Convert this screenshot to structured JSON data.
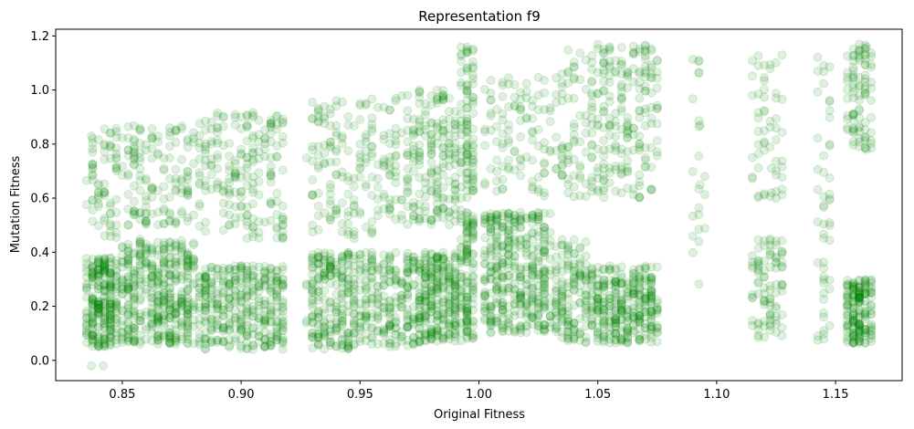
{
  "chart_data": {
    "type": "scatter",
    "title": "Representation f9",
    "xlabel": "Original Fitness",
    "ylabel": "Mutation Fitness",
    "xlim": [
      0.822,
      1.178
    ],
    "ylim": [
      -0.075,
      1.225
    ],
    "xticks": [
      0.85,
      0.9,
      0.95,
      1.0,
      1.05,
      1.1,
      1.15
    ],
    "xtick_labels": [
      "0.85",
      "0.90",
      "0.95",
      "1.00",
      "1.05",
      "1.10",
      "1.15"
    ],
    "yticks": [
      0.0,
      0.2,
      0.4,
      0.6,
      0.8,
      1.0,
      1.2
    ],
    "ytick_labels": [
      "0.0",
      "0.2",
      "0.4",
      "0.6",
      "0.8",
      "1.0",
      "1.2"
    ],
    "grid": false,
    "marker_color": "#008000",
    "marker_alpha": 0.12,
    "clusters": [
      {
        "x": [
          0.835,
          0.848
        ],
        "y": [
          0.05,
          0.38
        ],
        "n": 260
      },
      {
        "x": [
          0.835,
          0.848
        ],
        "y": [
          0.45,
          0.86
        ],
        "n": 70
      },
      {
        "x": [
          0.85,
          0.88
        ],
        "y": [
          0.06,
          0.45
        ],
        "n": 420
      },
      {
        "x": [
          0.85,
          0.88
        ],
        "y": [
          0.5,
          0.87
        ],
        "n": 140
      },
      {
        "x": [
          0.882,
          0.918
        ],
        "y": [
          0.04,
          0.35
        ],
        "n": 360
      },
      {
        "x": [
          0.882,
          0.918
        ],
        "y": [
          0.45,
          0.92
        ],
        "n": 200
      },
      {
        "x": [
          0.928,
          0.958
        ],
        "y": [
          0.04,
          0.4
        ],
        "n": 310
      },
      {
        "x": [
          0.928,
          0.958
        ],
        "y": [
          0.45,
          0.97
        ],
        "n": 140
      },
      {
        "x": [
          0.96,
          0.975
        ],
        "y": [
          0.05,
          0.4
        ],
        "n": 150
      },
      {
        "x": [
          0.96,
          0.975
        ],
        "y": [
          0.5,
          0.98
        ],
        "n": 90
      },
      {
        "x": [
          0.975,
          0.992
        ],
        "y": [
          0.07,
          0.4
        ],
        "n": 260
      },
      {
        "x": [
          0.975,
          0.992
        ],
        "y": [
          0.5,
          1.0
        ],
        "n": 150
      },
      {
        "x": [
          0.993,
          0.998
        ],
        "y": [
          0.07,
          0.55
        ],
        "n": 120
      },
      {
        "x": [
          0.993,
          0.998
        ],
        "y": [
          0.6,
          1.16
        ],
        "n": 90
      },
      {
        "x": [
          1.002,
          1.03
        ],
        "y": [
          0.1,
          0.55
        ],
        "n": 400
      },
      {
        "x": [
          1.002,
          1.03
        ],
        "y": [
          0.6,
          1.05
        ],
        "n": 100
      },
      {
        "x": [
          1.032,
          1.045
        ],
        "y": [
          0.07,
          0.45
        ],
        "n": 130
      },
      {
        "x": [
          1.032,
          1.045
        ],
        "y": [
          0.6,
          1.16
        ],
        "n": 60
      },
      {
        "x": [
          1.045,
          1.075
        ],
        "y": [
          0.06,
          0.35
        ],
        "n": 340
      },
      {
        "x": [
          1.045,
          1.075
        ],
        "y": [
          0.6,
          1.17
        ],
        "n": 220
      },
      {
        "x": [
          1.09,
          1.095
        ],
        "y": [
          0.1,
          1.13
        ],
        "n": 22
      },
      {
        "x": [
          1.115,
          1.128
        ],
        "y": [
          0.08,
          0.45
        ],
        "n": 90
      },
      {
        "x": [
          1.115,
          1.128
        ],
        "y": [
          0.6,
          1.13
        ],
        "n": 55
      },
      {
        "x": [
          1.143,
          1.148
        ],
        "y": [
          0.06,
          1.15
        ],
        "n": 50
      },
      {
        "x": [
          1.155,
          1.165
        ],
        "y": [
          0.06,
          0.3
        ],
        "n": 180
      },
      {
        "x": [
          1.155,
          1.165
        ],
        "y": [
          0.78,
          1.17
        ],
        "n": 90
      }
    ],
    "points": [
      [
        0.837,
        -0.02
      ],
      [
        0.842,
        -0.02
      ],
      [
        0.837,
        0.83
      ],
      [
        0.845,
        0.84
      ],
      [
        0.87,
        0.86
      ],
      [
        0.9,
        0.9
      ],
      [
        0.905,
        0.9
      ],
      [
        0.95,
        0.95
      ],
      [
        0.985,
        0.98
      ],
      [
        0.995,
        1.0
      ],
      [
        1.015,
        1.02
      ],
      [
        1.04,
        1.04
      ],
      [
        1.06,
        1.06
      ],
      [
        1.07,
        1.07
      ],
      [
        1.163,
        1.16
      ],
      [
        1.093,
        0.65
      ],
      [
        1.123,
        0.62
      ],
      [
        1.093,
        0.87
      ],
      [
        1.123,
        0.71
      ],
      [
        1.163,
        0.78
      ]
    ]
  }
}
